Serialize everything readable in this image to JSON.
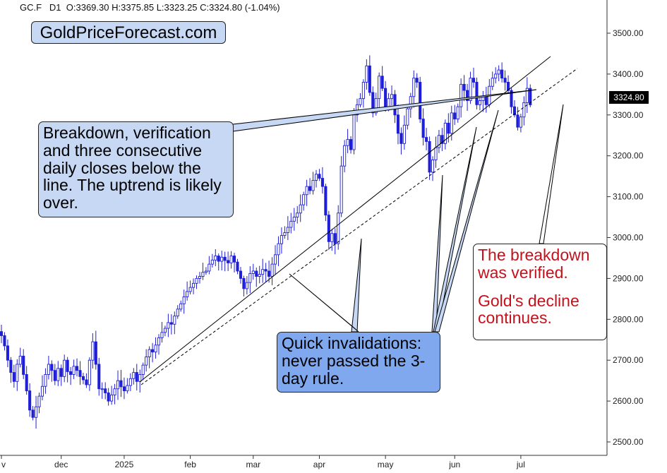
{
  "header": {
    "symbol": "GC.F",
    "timeframe": "D1",
    "ohlc_text": "O:3369.30  H:3375.85  L:3323.25  C:3324.80  (-1.04%)"
  },
  "brand": "GoldPriceForecast.com",
  "last_price_label": "3324.80",
  "annotations": {
    "breakdown_note": "Breakdown, verification and three consecutive daily closes below the line. The uptrend is likely over.",
    "invalidations_note": "Quick invalidations: never passed the 3-day rule.",
    "verified_line1": "The breakdown was verified.",
    "verified_line2": "Gold's decline continues."
  },
  "colors": {
    "candle": "#1f1fd6",
    "trendline": "#000000",
    "brand_box": "#c7d8f4",
    "invalidations_box": "#7fa8ef",
    "verified_text": "#c4121c"
  },
  "chart_data": {
    "type": "candlestick",
    "title": "",
    "ylim": [
      2470,
      3590
    ],
    "y_ticks": [
      "2500.00",
      "2600.00",
      "2700.00",
      "2800.00",
      "2900.00",
      "3000.00",
      "3100.00",
      "3200.00",
      "3300.00",
      "3400.00",
      "3500.00"
    ],
    "y_tick_values": [
      2500,
      2600,
      2700,
      2800,
      2900,
      3000,
      3100,
      3200,
      3300,
      3400,
      3500
    ],
    "x_month_labels": [
      "v",
      "dec",
      "2025",
      "feb",
      "mar",
      "apr",
      "may",
      "jun",
      "jul"
    ],
    "x_month_bar_index": [
      0,
      19,
      39,
      60,
      80,
      101,
      122,
      144,
      165
    ],
    "x_range_bars": [
      0,
      180
    ],
    "last_close": 3324.8,
    "closes": [
      2760,
      2735,
      2700,
      2670,
      2648,
      2690,
      2710,
      2665,
      2625,
      2578,
      2560,
      2586,
      2612,
      2636,
      2665,
      2690,
      2675,
      2650,
      2680,
      2660,
      2700,
      2672,
      2665,
      2685,
      2675,
      2660,
      2652,
      2640,
      2700,
      2745,
      2690,
      2630,
      2630,
      2620,
      2600,
      2615,
      2630,
      2650,
      2635,
      2625,
      2638,
      2655,
      2670,
      2648,
      2665,
      2688,
      2708,
      2726,
      2720,
      2737,
      2755,
      2768,
      2778,
      2792,
      2788,
      2808,
      2825,
      2838,
      2855,
      2868,
      2878,
      2888,
      2900,
      2905,
      2915,
      2918,
      2935,
      2945,
      2955,
      2942,
      2952,
      2944,
      2938,
      2955,
      2940,
      2918,
      2900,
      2875,
      2890,
      2912,
      2918,
      2905,
      2910,
      2922,
      2918,
      2905,
      2935,
      2958,
      2985,
      3005,
      3012,
      3025,
      3040,
      3050,
      3060,
      3080,
      3105,
      3125,
      3115,
      3140,
      3155,
      3145,
      3125,
      3055,
      2990,
      3010,
      2985,
      3060,
      3175,
      3225,
      3240,
      3215,
      3300,
      3325,
      3340,
      3380,
      3420,
      3355,
      3305,
      3340,
      3395,
      3365,
      3320,
      3340,
      3350,
      3300,
      3255,
      3230,
      3275,
      3315,
      3345,
      3390,
      3380,
      3290,
      3245,
      3235,
      3160,
      3190,
      3220,
      3250,
      3230,
      3280,
      3255,
      3305,
      3290,
      3320,
      3375,
      3360,
      3335,
      3390,
      3380,
      3325,
      3335,
      3345,
      3325,
      3370,
      3390,
      3400,
      3410,
      3390,
      3380,
      3360,
      3320,
      3300,
      3270,
      3295,
      3330,
      3365,
      3324.8
    ]
  }
}
